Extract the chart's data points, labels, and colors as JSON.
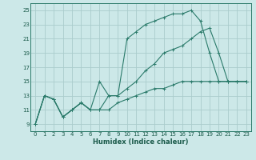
{
  "xlabel": "Humidex (Indice chaleur)",
  "bg_color": "#cce8e8",
  "grid_color": "#aacccc",
  "line_color": "#2a7a6a",
  "xlim": [
    -0.5,
    23.5
  ],
  "ylim": [
    8.0,
    26.0
  ],
  "yticks": [
    9,
    11,
    13,
    15,
    17,
    19,
    21,
    23,
    25
  ],
  "xticks": [
    0,
    1,
    2,
    3,
    4,
    5,
    6,
    7,
    8,
    9,
    10,
    11,
    12,
    13,
    14,
    15,
    16,
    17,
    18,
    19,
    20,
    21,
    22,
    23
  ],
  "line1_x": [
    0,
    1,
    2,
    3,
    4,
    5,
    6,
    7,
    8,
    9,
    10,
    11,
    12,
    13,
    14,
    15,
    16,
    17,
    18,
    19,
    20,
    21,
    22,
    23
  ],
  "line1_y": [
    9,
    13,
    12.5,
    10,
    11,
    12,
    11,
    11,
    13,
    13,
    14,
    15,
    16.5,
    17.5,
    19,
    19.5,
    20,
    21,
    22,
    22.5,
    19,
    15,
    15,
    15
  ],
  "line2_x": [
    0,
    1,
    2,
    3,
    4,
    5,
    6,
    7,
    8,
    9,
    10,
    11,
    12,
    13,
    14,
    15,
    16,
    17,
    18,
    19,
    20,
    21,
    22,
    23
  ],
  "line2_y": [
    9,
    13,
    12.5,
    10,
    11,
    12,
    11,
    15,
    13,
    13,
    21,
    22,
    23,
    23.5,
    24,
    24.5,
    24.5,
    25,
    23.5,
    19,
    15,
    15,
    15,
    15
  ],
  "line3_x": [
    0,
    1,
    2,
    3,
    4,
    5,
    6,
    7,
    8,
    9,
    10,
    11,
    12,
    13,
    14,
    15,
    16,
    17,
    18,
    19,
    20,
    21,
    22,
    23
  ],
  "line3_y": [
    9,
    13,
    12.5,
    10,
    11,
    12,
    11,
    11,
    11,
    12,
    12.5,
    13,
    13.5,
    14,
    14,
    14.5,
    15,
    15,
    15,
    15,
    15,
    15,
    15,
    15
  ]
}
